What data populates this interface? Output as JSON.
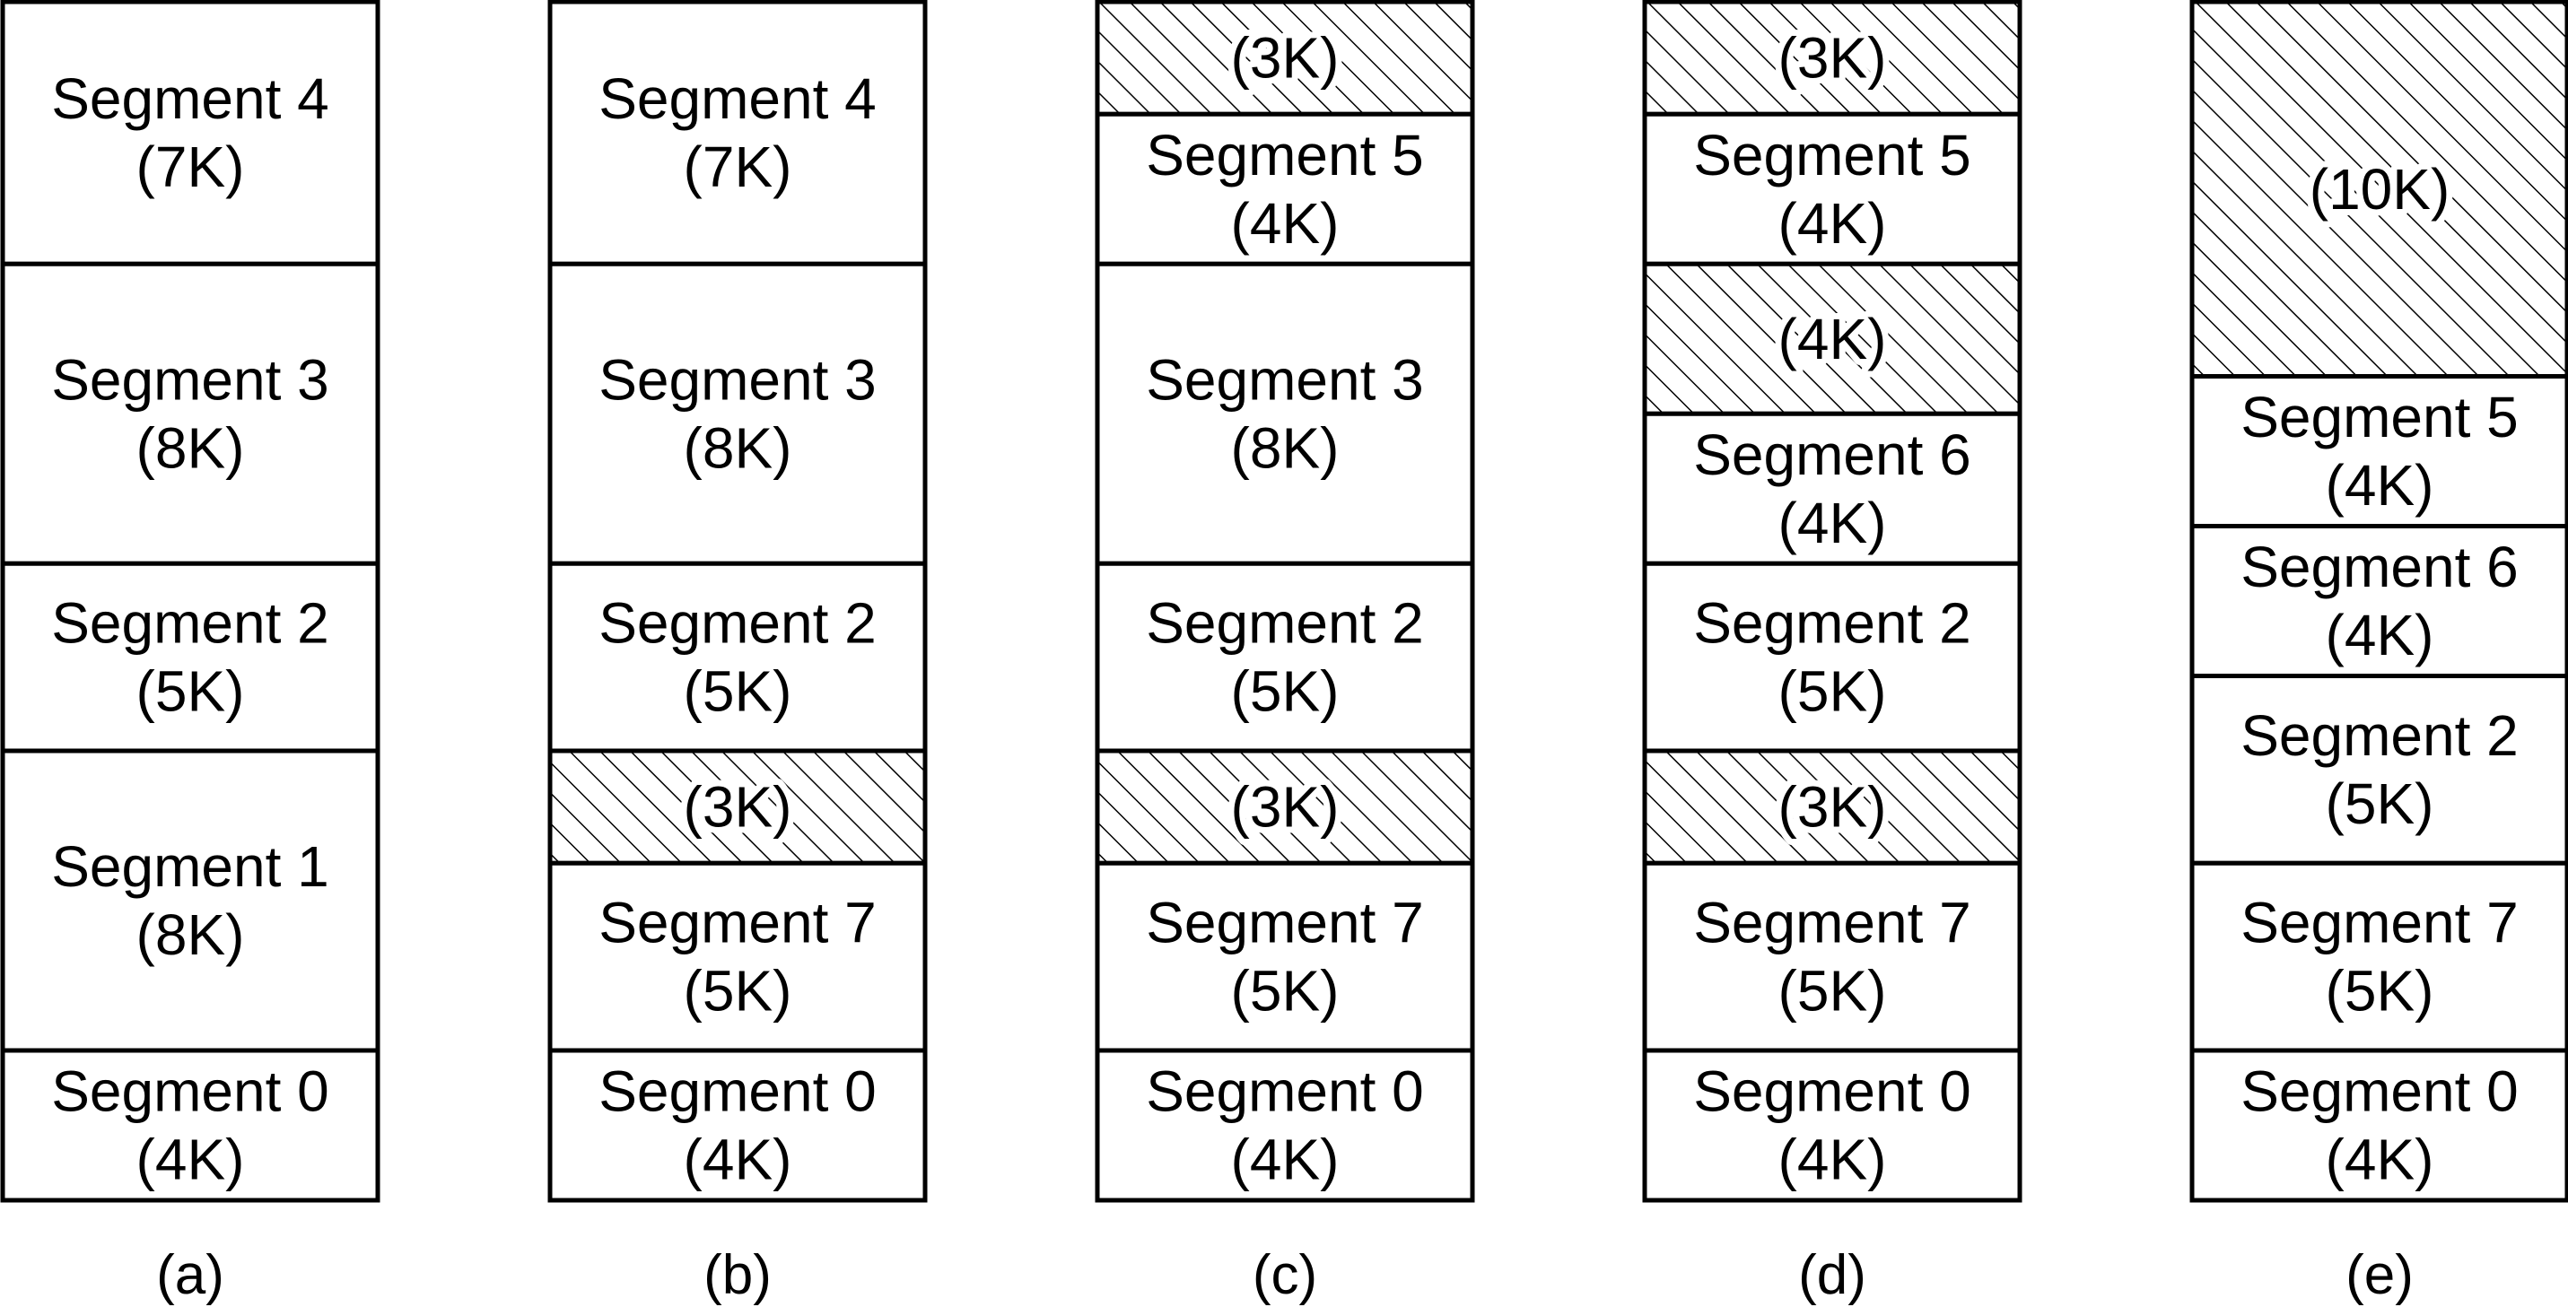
{
  "columns": [
    {
      "caption": "(a)",
      "blocks": [
        {
          "kind": "segment",
          "name": "Segment 4",
          "size": "(7K)",
          "units": 7
        },
        {
          "kind": "segment",
          "name": "Segment 3",
          "size": "(8K)",
          "units": 8
        },
        {
          "kind": "segment",
          "name": "Segment 2",
          "size": "(5K)",
          "units": 5
        },
        {
          "kind": "segment",
          "name": "Segment 1",
          "size": "(8K)",
          "units": 8
        },
        {
          "kind": "segment",
          "name": "Segment 0",
          "size": "(4K)",
          "units": 4
        }
      ]
    },
    {
      "caption": "(b)",
      "blocks": [
        {
          "kind": "segment",
          "name": "Segment 4",
          "size": "(7K)",
          "units": 7
        },
        {
          "kind": "segment",
          "name": "Segment 3",
          "size": "(8K)",
          "units": 8
        },
        {
          "kind": "segment",
          "name": "Segment 2",
          "size": "(5K)",
          "units": 5
        },
        {
          "kind": "hole",
          "size": "(3K)",
          "units": 3
        },
        {
          "kind": "segment",
          "name": "Segment 7",
          "size": "(5K)",
          "units": 5
        },
        {
          "kind": "segment",
          "name": "Segment 0",
          "size": "(4K)",
          "units": 4
        }
      ]
    },
    {
      "caption": "(c)",
      "blocks": [
        {
          "kind": "hole",
          "size": "(3K)",
          "units": 3
        },
        {
          "kind": "segment",
          "name": "Segment 5",
          "size": "(4K)",
          "units": 4
        },
        {
          "kind": "segment",
          "name": "Segment 3",
          "size": "(8K)",
          "units": 8
        },
        {
          "kind": "segment",
          "name": "Segment 2",
          "size": "(5K)",
          "units": 5
        },
        {
          "kind": "hole",
          "size": "(3K)",
          "units": 3
        },
        {
          "kind": "segment",
          "name": "Segment 7",
          "size": "(5K)",
          "units": 5
        },
        {
          "kind": "segment",
          "name": "Segment 0",
          "size": "(4K)",
          "units": 4
        }
      ]
    },
    {
      "caption": "(d)",
      "blocks": [
        {
          "kind": "hole",
          "size": "(3K)",
          "units": 3
        },
        {
          "kind": "segment",
          "name": "Segment 5",
          "size": "(4K)",
          "units": 4
        },
        {
          "kind": "hole",
          "size": "(4K)",
          "units": 4
        },
        {
          "kind": "segment",
          "name": "Segment 6",
          "size": "(4K)",
          "units": 4
        },
        {
          "kind": "segment",
          "name": "Segment 2",
          "size": "(5K)",
          "units": 5
        },
        {
          "kind": "hole",
          "size": "(3K)",
          "units": 3
        },
        {
          "kind": "segment",
          "name": "Segment 7",
          "size": "(5K)",
          "units": 5
        },
        {
          "kind": "segment",
          "name": "Segment 0",
          "size": "(4K)",
          "units": 4
        }
      ]
    },
    {
      "caption": "(e)",
      "blocks": [
        {
          "kind": "hole",
          "size": "(10K)",
          "units": 10
        },
        {
          "kind": "segment",
          "name": "Segment 5",
          "size": "(4K)",
          "units": 4
        },
        {
          "kind": "segment",
          "name": "Segment 6",
          "size": "(4K)",
          "units": 4
        },
        {
          "kind": "segment",
          "name": "Segment 2",
          "size": "(5K)",
          "units": 5
        },
        {
          "kind": "segment",
          "name": "Segment 7",
          "size": "(5K)",
          "units": 5
        },
        {
          "kind": "segment",
          "name": "Segment 0",
          "size": "(4K)",
          "units": 4
        }
      ]
    }
  ],
  "colors": {
    "stroke": "#000000",
    "fill": "#ffffff",
    "hatch": "#000000"
  }
}
